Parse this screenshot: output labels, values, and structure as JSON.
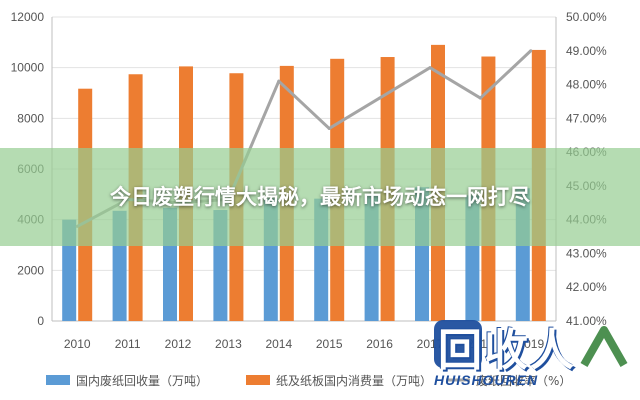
{
  "chart_data": {
    "type": "bar",
    "categories": [
      "2010",
      "2011",
      "2012",
      "2013",
      "2014",
      "2015",
      "2016",
      "2017",
      "2018",
      "2019"
    ],
    "series": [
      {
        "name": "国内废纸回收量（万吨）",
        "type": "bar",
        "axis": "left",
        "color": "#5b9bd5",
        "values": [
          4000,
          4350,
          4470,
          4380,
          4840,
          4830,
          4960,
          5280,
          4960,
          5240
        ]
      },
      {
        "name": "纸及纸板国内消费量（万吨）",
        "type": "bar",
        "axis": "left",
        "color": "#ed7d31",
        "values": [
          9170,
          9740,
          10050,
          9780,
          10070,
          10350,
          10420,
          10900,
          10440,
          10700
        ]
      },
      {
        "name": "废纸回收率（%）",
        "type": "line",
        "axis": "right",
        "color": "#a5a5a5",
        "values": [
          43.8,
          44.6,
          44.5,
          44.6,
          48.1,
          46.7,
          47.6,
          48.5,
          47.6,
          49.0
        ]
      }
    ],
    "ylim_left": [
      0,
      12000
    ],
    "ylim_right": [
      41.0,
      50.0
    ],
    "y_ticks_left": [
      "0",
      "2000",
      "4000",
      "6000",
      "8000",
      "10000",
      "12000"
    ],
    "y_ticks_right": [
      "41.00%",
      "42.00%",
      "43.00%",
      "44.00%",
      "45.00%",
      "46.00%",
      "47.00%",
      "48.00%",
      "49.00%",
      "50.00%"
    ],
    "grid": true,
    "legend_position": "bottom"
  },
  "banner": {
    "title": "今日废塑行情大揭秘，最新市场动态一网打尽"
  },
  "watermark": {
    "main": "回收人",
    "sub": "HUISHOUREN"
  }
}
